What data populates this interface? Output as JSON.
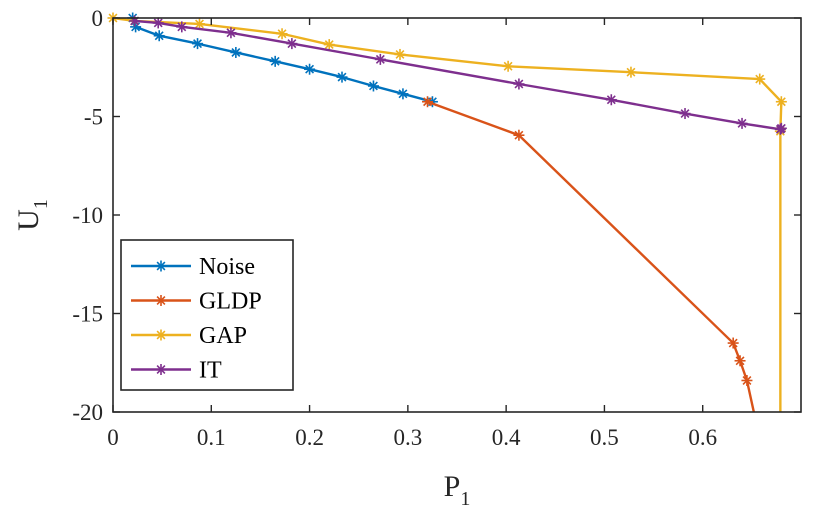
{
  "chart_data": {
    "type": "line",
    "title": "",
    "xlabel": "P",
    "xlabel_sub": "1",
    "ylabel": "U",
    "ylabel_sub": "1",
    "xlim": [
      0,
      0.7
    ],
    "ylim": [
      -20,
      0
    ],
    "xticks": [
      0,
      0.1,
      0.2,
      0.3,
      0.4,
      0.5,
      0.6
    ],
    "xtick_labels": [
      "0",
      "0.1",
      "0.2",
      "0.3",
      "0.4",
      "0.5",
      "0.6"
    ],
    "yticks": [
      0,
      -5,
      -10,
      -15,
      -20
    ],
    "ytick_labels": [
      "0",
      "-5",
      "-10",
      "-15",
      "-20"
    ],
    "grid": false,
    "legend_position": "bottom-left",
    "series": [
      {
        "name": "Noise",
        "color": "#0072BD",
        "x": [
          0.02,
          0.023,
          0.047,
          0.086,
          0.125,
          0.165,
          0.2,
          0.233,
          0.265,
          0.295,
          0.325
        ],
        "y": [
          0,
          -0.45,
          -0.9,
          -1.3,
          -1.75,
          -2.2,
          -2.6,
          -3.0,
          -3.45,
          -3.85,
          -4.25
        ]
      },
      {
        "name": "GLDP",
        "color": "#D95319",
        "x": [
          0.32,
          0.413,
          0.631,
          0.638,
          0.645,
          0.652
        ],
        "y": [
          -4.25,
          -5.95,
          -16.5,
          -17.4,
          -18.4,
          -20
        ]
      },
      {
        "name": "GAP",
        "color": "#EDB120",
        "x": [
          0,
          0.022,
          0.088,
          0.172,
          0.22,
          0.292,
          0.402,
          0.527,
          0.658,
          0.68,
          0.679,
          0.679
        ],
        "y": [
          0,
          -0.15,
          -0.3,
          -0.8,
          -1.35,
          -1.85,
          -2.45,
          -2.75,
          -3.1,
          -4.25,
          -5.75,
          -20
        ]
      },
      {
        "name": "IT",
        "color": "#7E2F8E",
        "x": [
          0.022,
          0.046,
          0.07,
          0.12,
          0.182,
          0.272,
          0.413,
          0.507,
          0.582,
          0.64,
          0.679,
          0.68
        ],
        "y": [
          -0.15,
          -0.25,
          -0.45,
          -0.75,
          -1.3,
          -2.1,
          -3.35,
          -4.15,
          -4.85,
          -5.35,
          -5.65,
          -5.6
        ]
      }
    ]
  }
}
